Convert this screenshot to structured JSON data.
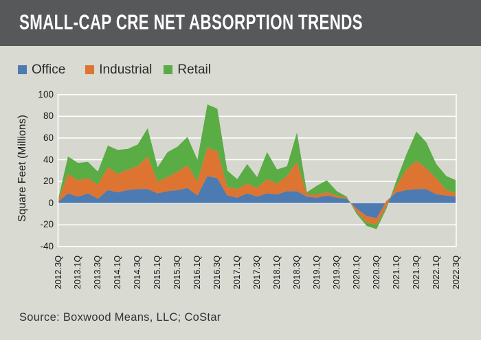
{
  "header": {
    "title": "SMALL-CAP CRE NET ABSORPTION TRENDS"
  },
  "footer": {
    "source": "Source: Boxwood Means, LLC; CoStar"
  },
  "colors": {
    "titlebar_bg": "#57585a",
    "page_bg": "#d9dad2",
    "plot_bg": "#d6d7cf",
    "gridline": "#ffffff",
    "office_blue": "#4d7ab1",
    "industrial_orange": "#dd7431",
    "retail_green": "#5aac45"
  },
  "chart_data": {
    "type": "area",
    "stacked": true,
    "title": "SMALL-CAP CRE NET ABSORPTION TRENDS",
    "ylabel": "Square Feet (Millions)",
    "xlabel": "",
    "ylim": [
      -40,
      100
    ],
    "yticks": [
      100,
      80,
      60,
      40,
      20,
      0,
      -20,
      -40
    ],
    "xtick_every": 2,
    "grid": "horizontal-white",
    "legend_position": "top-left",
    "x": [
      "2012.3Q",
      "2012.4Q",
      "2013.1Q",
      "2013.2Q",
      "2013.3Q",
      "2013.4Q",
      "2014.1Q",
      "2014.2Q",
      "2014.3Q",
      "2014.4Q",
      "2015.1Q",
      "2015.2Q",
      "2015.3Q",
      "2015.4Q",
      "2016.1Q",
      "2016.2Q",
      "2016.3Q",
      "2016.4Q",
      "2017.1Q",
      "2017.2Q",
      "2017.3Q",
      "2017.4Q",
      "2018.1Q",
      "2018.2Q",
      "2018.3Q",
      "2018.4Q",
      "2019.1Q",
      "2019.2Q",
      "2019.3Q",
      "2019.4Q",
      "2020.1Q",
      "2020.2Q",
      "2020.3Q",
      "2020.4Q",
      "2021.1Q",
      "2021.2Q",
      "2021.3Q",
      "2021.4Q",
      "2022.1Q",
      "2022.2Q",
      "2022.3Q"
    ],
    "series": [
      {
        "name": "Office",
        "color": "#4d7ab1",
        "values": [
          1,
          9,
          6,
          9,
          4,
          12,
          10,
          12,
          13,
          13,
          9,
          11,
          12,
          14,
          7,
          25,
          23,
          7,
          5,
          9,
          6,
          9,
          8,
          11,
          11,
          6,
          5,
          7,
          5,
          4,
          -5,
          -12,
          -14,
          2,
          10,
          12,
          13,
          13,
          8,
          7,
          6
        ]
      },
      {
        "name": "Industrial",
        "color": "#dd7431",
        "values": [
          1,
          18,
          15,
          14,
          13,
          21,
          17,
          19,
          21,
          30,
          11,
          13,
          17,
          21,
          13,
          26,
          25,
          8,
          8,
          9,
          8,
          13,
          10,
          14,
          27,
          2,
          3,
          3,
          2,
          1,
          -3,
          -6,
          -6,
          -5,
          6,
          19,
          26,
          19,
          15,
          5,
          3
        ]
      },
      {
        "name": "Retail",
        "color": "#5aac45",
        "values": [
          1,
          16,
          16,
          15,
          12,
          20,
          22,
          19,
          20,
          26,
          13,
          23,
          23,
          26,
          20,
          40,
          39,
          15,
          9,
          18,
          10,
          25,
          13,
          9,
          27,
          2,
          8,
          11,
          4,
          1,
          -2,
          -3,
          -4,
          -2,
          5,
          14,
          27,
          24,
          13,
          13,
          12
        ]
      }
    ]
  }
}
